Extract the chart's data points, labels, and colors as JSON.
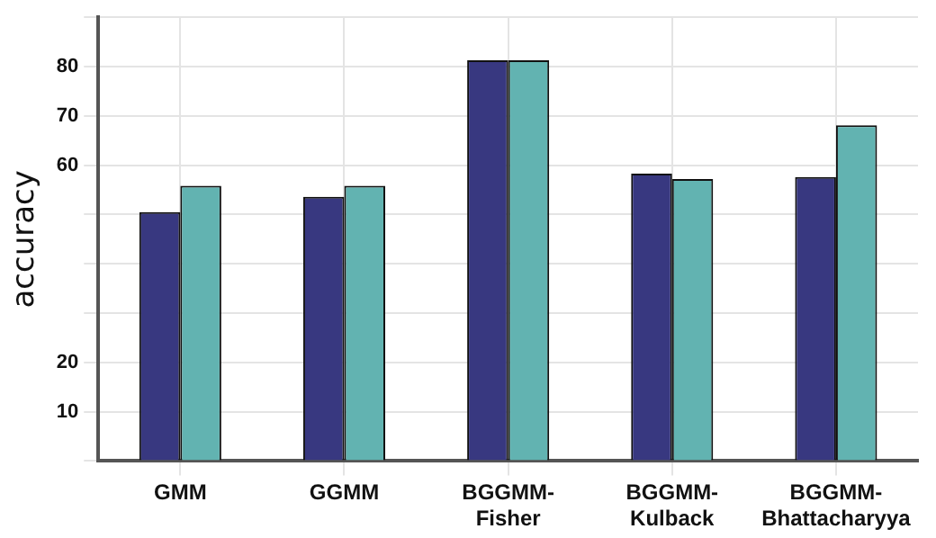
{
  "chart_data": {
    "type": "bar",
    "ylabel": "accuracy",
    "categories": [
      "GMM",
      "GGMM",
      "BGGMM-Fisher",
      "BGGMM-Kulback",
      "BGGMM-Bhattacharyya"
    ],
    "series": [
      {
        "color": "#383880",
        "values": [
          50.5,
          53.6,
          81.3,
          58.3,
          57.6
        ]
      },
      {
        "color": "#62b3b1",
        "values": [
          55.8,
          55.8,
          81.3,
          57.2,
          68.1
        ]
      }
    ],
    "ylim": [
      0,
      90
    ],
    "yticks": [
      {
        "value": 0,
        "label": null
      },
      10,
      20,
      {
        "value": 30,
        "label": null
      },
      {
        "value": 40,
        "label": null
      },
      {
        "value": 50,
        "label": null
      },
      60,
      70,
      80,
      {
        "value": 90,
        "label": null
      }
    ],
    "grid": true
  }
}
